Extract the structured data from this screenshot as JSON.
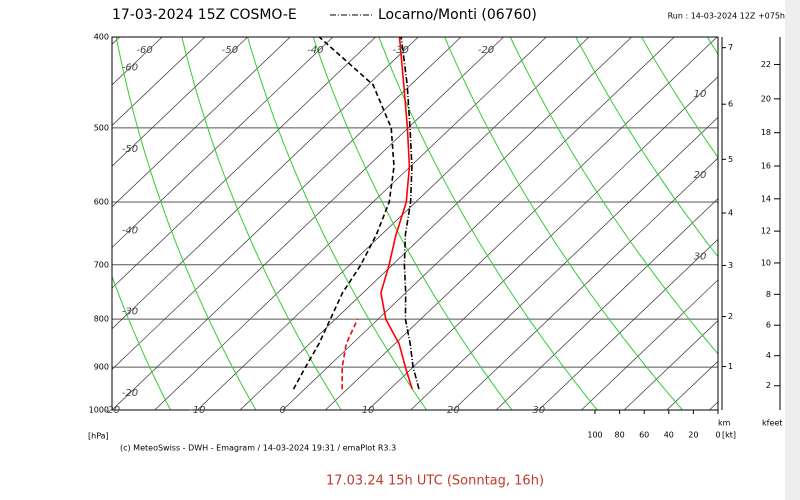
{
  "chart_data": {
    "type": "emagram",
    "title": "17-03-2024 15Z COSMO-E",
    "legend": "Locarno/Monti (06760)",
    "run": "Run : 14-03-2024 12Z +075h",
    "y_unit": "[hPa]",
    "credit": "(c) MeteoSwiss - DWH - Emagram / 14-03-2024 19:31 / emaPlot R3.3",
    "log_y": true,
    "ylim": [
      1000,
      400
    ],
    "yticks": [
      400,
      500,
      600,
      700,
      800,
      900,
      1000
    ],
    "xlim": [
      -20,
      51
    ],
    "isotherms": [
      -70,
      -65,
      -60,
      -55,
      -50,
      -45,
      -40,
      -35,
      -30,
      -25,
      -20,
      -15,
      -10,
      -5,
      0,
      5,
      10,
      15,
      20,
      25,
      30,
      35,
      40,
      45,
      50
    ],
    "dry_adiabats": [
      250,
      260,
      270,
      280,
      290,
      300,
      310,
      320,
      330,
      340,
      350,
      360,
      370
    ],
    "top_labels": [
      -60,
      -50,
      -40,
      -30,
      -20
    ],
    "bottom_labels": [
      -20,
      -10,
      0,
      10,
      20,
      30
    ],
    "left_labels": [
      -60,
      -50,
      -40,
      -30,
      -20
    ],
    "right_labels": [
      10,
      20,
      30
    ],
    "pressure": [
      950,
      900,
      850,
      800,
      750,
      700,
      650,
      600,
      550,
      500,
      450,
      400
    ],
    "series": [
      {
        "color": "#ff0000",
        "dash": "solid",
        "values": [
          12.6,
          9.1,
          5.5,
          0.9,
          -2.9,
          -5.4,
          -8.3,
          -11.1,
          -15.1,
          -20.1,
          -25.8,
          -32.2
        ]
      },
      {
        "color": "#ff0000",
        "dash": "dashed",
        "values": [
          4.4,
          1.7,
          -0.7,
          -2.4,
          null,
          null,
          null,
          null,
          null,
          null,
          null,
          null
        ]
      },
      {
        "color": "#000000",
        "dash": "dashdot",
        "values": [
          13.4,
          10.0,
          6.8,
          3.2,
          0.0,
          -3.6,
          -7.2,
          -10.6,
          -14.8,
          -19.8,
          -25.4,
          -32.0
        ]
      },
      {
        "color": "#000000",
        "dash": "dashed",
        "values": [
          -1.3,
          -2.6,
          -3.9,
          -5.6,
          -7.4,
          -8.7,
          -10.6,
          -13.1,
          -16.9,
          -22.0,
          -29.4,
          -41.6
        ]
      }
    ],
    "wind_lim": [
      0,
      100
    ],
    "wind_ticks": [
      100,
      80,
      60,
      40,
      20,
      0
    ],
    "wind_unit": "[kt]",
    "km_ticks": [
      1,
      2,
      3,
      4,
      5,
      6,
      7
    ],
    "km_unit": "km",
    "kfeet_ticks": [
      2,
      4,
      6,
      8,
      10,
      12,
      14,
      16,
      18,
      20,
      22
    ],
    "kfeet_unit": "kfeet"
  },
  "caption": "17.03.24 15h UTC (Sonntag, 16h)"
}
